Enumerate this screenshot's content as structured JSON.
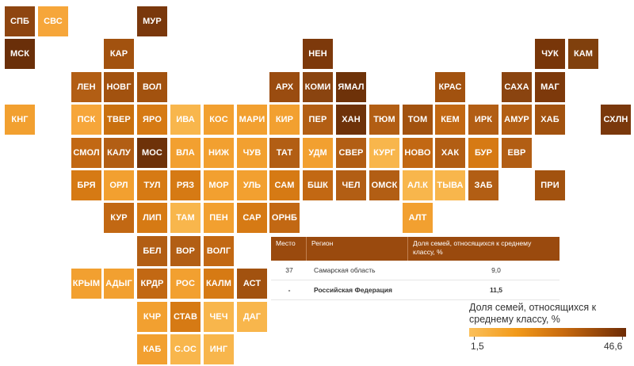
{
  "regions": [
    {
      "code": "СПБ",
      "color": "#8e4510"
    },
    {
      "code": "СВС",
      "color": "#f6a63a"
    },
    {
      "code": "МУР",
      "color": "#7a380c"
    },
    {
      "code": "МСК",
      "color": "#6a2f09"
    },
    {
      "code": "КАР",
      "color": "#a2520f"
    },
    {
      "code": "НЕН",
      "color": "#7d390b"
    },
    {
      "code": "ЧУК",
      "color": "#783609"
    },
    {
      "code": "КАМ",
      "color": "#80400d"
    },
    {
      "code": "ЛЕН",
      "color": "#b25e14"
    },
    {
      "code": "НОВГ",
      "color": "#a2520f"
    },
    {
      "code": "ВОЛ",
      "color": "#a2520f"
    },
    {
      "code": "АРХ",
      "color": "#9a4c10"
    },
    {
      "code": "КОМИ",
      "color": "#8a4410"
    },
    {
      "code": "ЯМАЛ",
      "color": "#6e3209"
    },
    {
      "code": "КРАС",
      "color": "#a2520f"
    },
    {
      "code": "САХА",
      "color": "#8a4410"
    },
    {
      "code": "МАГ",
      "color": "#7d390b"
    },
    {
      "code": "КНГ",
      "color": "#f2a030"
    },
    {
      "code": "ПСК",
      "color": "#f6a63a"
    },
    {
      "code": "ТВЕР",
      "color": "#c9700f"
    },
    {
      "code": "ЯРО",
      "color": "#d67a14"
    },
    {
      "code": "ИВА",
      "color": "#f8b64c"
    },
    {
      "code": "КОС",
      "color": "#f2a030"
    },
    {
      "code": "МАРИ",
      "color": "#f2a030"
    },
    {
      "code": "КИР",
      "color": "#f2a030"
    },
    {
      "code": "ПЕР",
      "color": "#b25e14"
    },
    {
      "code": "ХАН",
      "color": "#6e3209"
    },
    {
      "code": "ТЮМ",
      "color": "#b25e14"
    },
    {
      "code": "ТОМ",
      "color": "#a2520f"
    },
    {
      "code": "КЕМ",
      "color": "#c26813"
    },
    {
      "code": "ИРК",
      "color": "#b25e14"
    },
    {
      "code": "АМУР",
      "color": "#b25e14"
    },
    {
      "code": "ХАБ",
      "color": "#a2520f"
    },
    {
      "code": "СХЛН",
      "color": "#7a380c"
    },
    {
      "code": "СМОЛ",
      "color": "#c26813"
    },
    {
      "code": "КАЛУ",
      "color": "#b25e14"
    },
    {
      "code": "МОС",
      "color": "#6e3209"
    },
    {
      "code": "ВЛА",
      "color": "#f2a030"
    },
    {
      "code": "НИЖ",
      "color": "#f2a030"
    },
    {
      "code": "ЧУВ",
      "color": "#f2a030"
    },
    {
      "code": "ТАТ",
      "color": "#b25e14"
    },
    {
      "code": "УДМ",
      "color": "#f2a030"
    },
    {
      "code": "СВЕР",
      "color": "#b25e14"
    },
    {
      "code": "КУРГ",
      "color": "#f8b64c"
    },
    {
      "code": "НОВО",
      "color": "#c26813"
    },
    {
      "code": "ХАК",
      "color": "#b25e14"
    },
    {
      "code": "БУР",
      "color": "#d67a14"
    },
    {
      "code": "ЕВР",
      "color": "#b25e14"
    },
    {
      "code": "БРЯ",
      "color": "#d67a14"
    },
    {
      "code": "ОРЛ",
      "color": "#f2a030"
    },
    {
      "code": "ТУЛ",
      "color": "#d67a14"
    },
    {
      "code": "РЯЗ",
      "color": "#d67a14"
    },
    {
      "code": "МОР",
      "color": "#f2a030"
    },
    {
      "code": "УЛЬ",
      "color": "#f2a030"
    },
    {
      "code": "САМ",
      "color": "#d67a14"
    },
    {
      "code": "БШК",
      "color": "#c26813"
    },
    {
      "code": "ЧЕЛ",
      "color": "#b25e14"
    },
    {
      "code": "ОМСК",
      "color": "#b25e14"
    },
    {
      "code": "АЛ.К",
      "color": "#f8b64c"
    },
    {
      "code": "ТЫВА",
      "color": "#f8b64c"
    },
    {
      "code": "ЗАБ",
      "color": "#b25e14"
    },
    {
      "code": "ПРИ",
      "color": "#a2520f"
    },
    {
      "code": "КУР",
      "color": "#c26813"
    },
    {
      "code": "ЛИП",
      "color": "#d67a14"
    },
    {
      "code": "ТАМ",
      "color": "#f8b64c"
    },
    {
      "code": "ПЕН",
      "color": "#f2a030"
    },
    {
      "code": "САР",
      "color": "#d67a14"
    },
    {
      "code": "ОРНБ",
      "color": "#c26813"
    },
    {
      "code": "АЛТ",
      "color": "#f2a030"
    },
    {
      "code": "БЕЛ",
      "color": "#b25e14"
    },
    {
      "code": "ВОР",
      "color": "#b25e14"
    },
    {
      "code": "ВОЛГ",
      "color": "#c26813"
    },
    {
      "code": "КРЫМ",
      "color": "#f2a030"
    },
    {
      "code": "АДЫГ",
      "color": "#f2a030"
    },
    {
      "code": "КРДР",
      "color": "#c26813"
    },
    {
      "code": "РОС",
      "color": "#f2a030"
    },
    {
      "code": "КАЛМ",
      "color": "#d67a14"
    },
    {
      "code": "АСТ",
      "color": "#a2520f"
    },
    {
      "code": "КЧР",
      "color": "#f2a030"
    },
    {
      "code": "СТАВ",
      "color": "#d67a14"
    },
    {
      "code": "ЧЕЧ",
      "color": "#f8b64c"
    },
    {
      "code": "ДАГ",
      "color": "#f8b64c"
    },
    {
      "code": "КАБ",
      "color": "#f2a030"
    },
    {
      "code": "С.ОС",
      "color": "#f8b64c"
    },
    {
      "code": "ИНГ",
      "color": "#f8b64c"
    }
  ],
  "table": {
    "headers": [
      "Место",
      "Регион",
      "Доля семей, относящихся к среднему классу, %"
    ],
    "rows": [
      {
        "place": "37",
        "region": "Самарская область",
        "value": "9,0"
      },
      {
        "place": "-",
        "region": "Российская Федерация",
        "value": "11,5"
      }
    ]
  },
  "legend": {
    "title": "Доля семей, относящихся к среднему классу, %",
    "min": "1,5",
    "max": "46,6",
    "colors": [
      "#fbc05a",
      "#f29a1a",
      "#c86a0e",
      "#6e2c06"
    ]
  }
}
